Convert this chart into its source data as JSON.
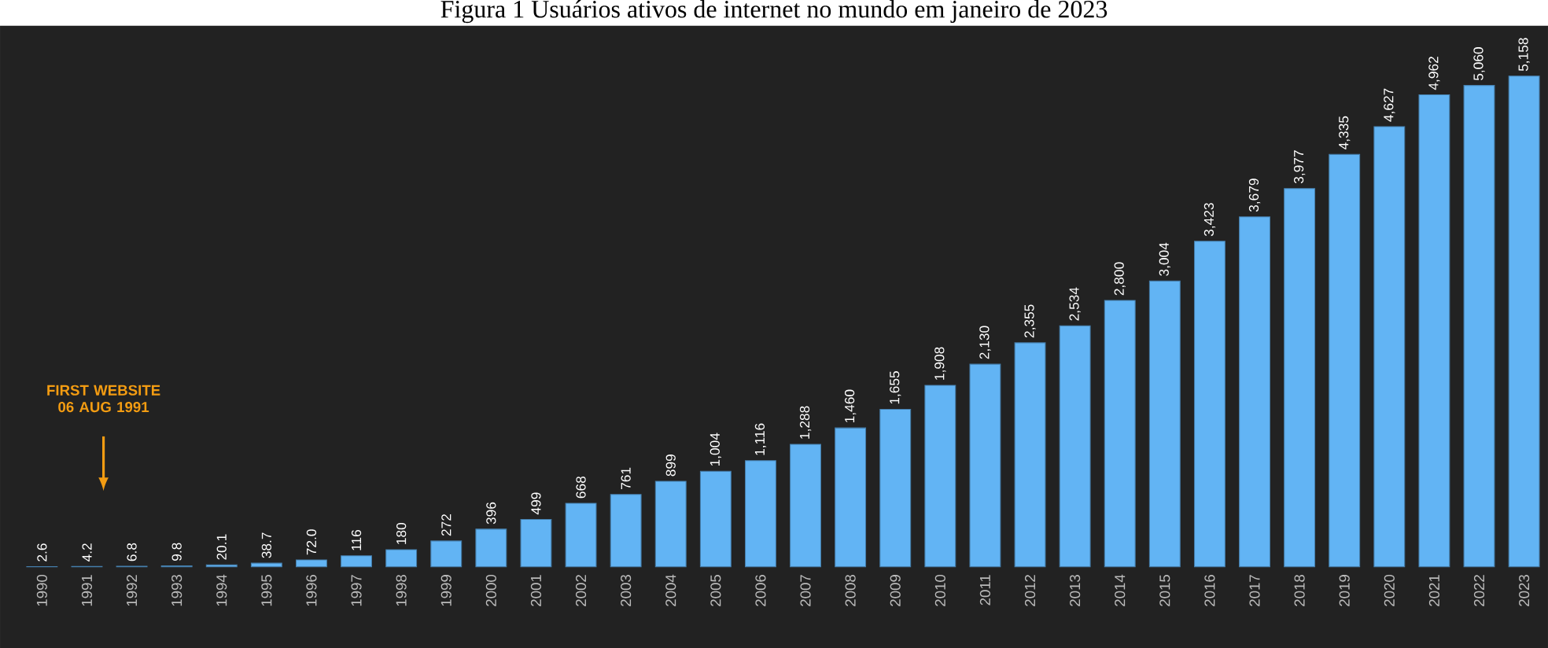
{
  "chart_data": {
    "type": "bar",
    "title": "Figura 1 Usuários ativos de internet no mundo em janeiro de 2023",
    "categories": [
      "1990",
      "1991",
      "1992",
      "1993",
      "1994",
      "1995",
      "1996",
      "1997",
      "1998",
      "1999",
      "2000",
      "2001",
      "2002",
      "2003",
      "2004",
      "2005",
      "2006",
      "2007",
      "2008",
      "2009",
      "2010",
      "2011",
      "2012",
      "2013",
      "2014",
      "2015",
      "2016",
      "2017",
      "2018",
      "2019",
      "2020",
      "2021",
      "2022",
      "2023"
    ],
    "values": [
      2.6,
      4.2,
      6.8,
      9.8,
      20.1,
      38.7,
      72.0,
      116,
      180,
      272,
      396,
      499,
      668,
      761,
      899,
      1004,
      1116,
      1288,
      1460,
      1655,
      1908,
      2130,
      2355,
      2534,
      2800,
      3004,
      3423,
      3679,
      3977,
      4335,
      4627,
      4962,
      5060,
      5158
    ],
    "value_labels": [
      "2.6",
      "4.2",
      "6.8",
      "9.8",
      "20.1",
      "38.7",
      "72.0",
      "116",
      "180",
      "272",
      "396",
      "499",
      "668",
      "761",
      "899",
      "1,004",
      "1,116",
      "1,288",
      "1,460",
      "1,655",
      "1,908",
      "2,130",
      "2,355",
      "2,534",
      "2,800",
      "3,004",
      "3,423",
      "3,679",
      "3,977",
      "4,335",
      "4,627",
      "4,962",
      "5,060",
      "5,158"
    ],
    "color": "#62b4f4",
    "annotations": [
      "FIRST WEBSITE\n06 AUG 1991"
    ]
  }
}
